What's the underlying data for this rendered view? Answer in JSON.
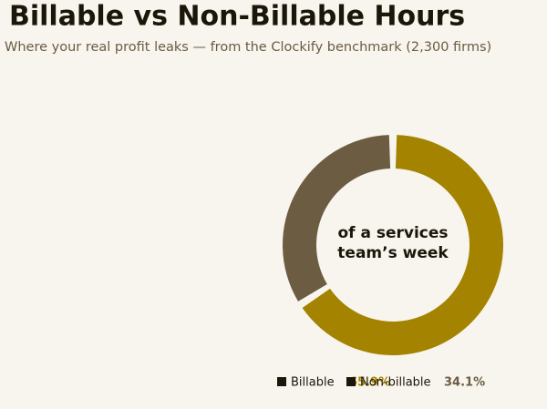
{
  "chart_data": {
    "type": "donut",
    "title": "Billable vs Non-Billable Hours",
    "subtitle": "Where your real profit leaks — from the Clockify benchmark (2,300 firms)",
    "center_label": [
      "of a services",
      "team’s week"
    ],
    "series": [
      {
        "name": "Billable",
        "color": "#a38300",
        "values": [
          65.9
        ],
        "value_labels": [
          "65.9%"
        ]
      },
      {
        "name": "Non-billable",
        "color": "#6b5c42",
        "values": [
          34.1
        ],
        "value_labels": [
          "34.1%"
        ]
      }
    ]
  }
}
